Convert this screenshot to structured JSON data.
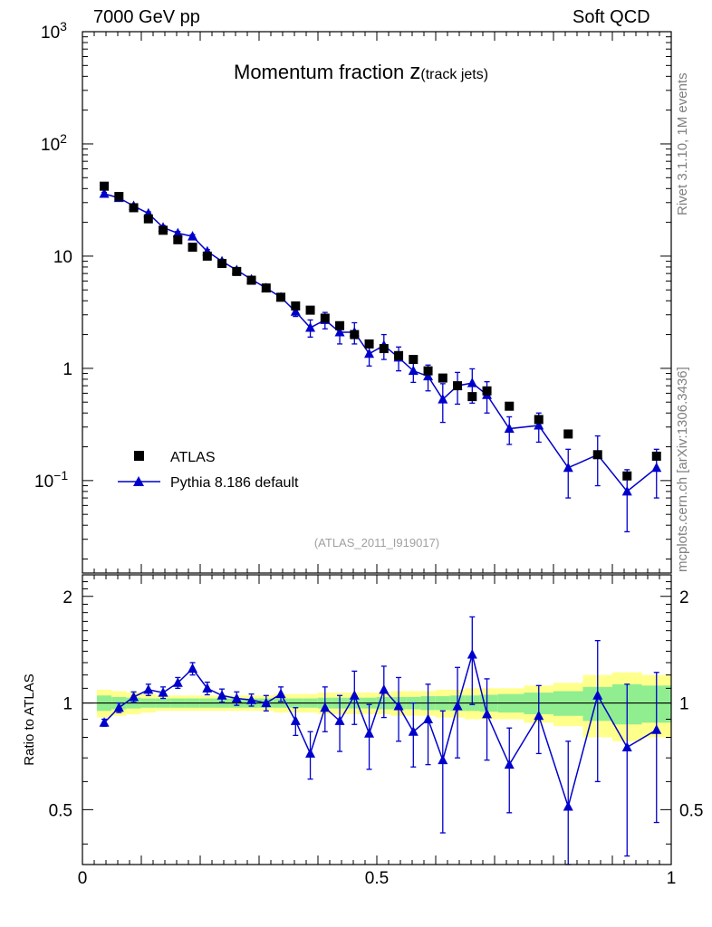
{
  "header": {
    "left": "7000 GeV pp",
    "right": "Soft QCD"
  },
  "side_labels": {
    "rivet": "Rivet 3.1.10,  1M events",
    "mcplots": "mcplots.cern.ch [arXiv:1306.3436]"
  },
  "chart_data": {
    "type": "scatter",
    "title_main": "Momentum fraction ",
    "title_z": "z",
    "title_sub": "(track jets)",
    "analysis_tag": "(ATLAS_2011_I919017)",
    "x_ticklabels": [
      "0",
      "0.5",
      "1"
    ],
    "top_yticklabels": [
      {
        "base": "10",
        "exp": "3",
        "v": 1000
      },
      {
        "base": "10",
        "exp": "2",
        "v": 100
      },
      {
        "base": "10",
        "exp": "",
        "v": 10
      },
      {
        "base": "1",
        "exp": "",
        "v": 1
      },
      {
        "base": "10",
        "exp": "−1",
        "v": 0.1
      }
    ],
    "ratio_yticklabels": [
      "2",
      "1",
      "0.5"
    ],
    "ratio_ylabel": "Ratio to ATLAS",
    "xlim": [
      0,
      1
    ],
    "ylim_top": [
      0.015,
      1000
    ],
    "ylim_ratio": [
      0.35,
      2.3
    ],
    "legend": {
      "data": "ATLAS",
      "mc": "Pythia 8.186 default",
      "placement": "bottom-left"
    },
    "colors": {
      "data": "#000000",
      "mc": "#0000cc",
      "band_inner": "#90ee90",
      "band_outer": "#ffff8c"
    },
    "x": [
      0.037,
      0.062,
      0.087,
      0.112,
      0.137,
      0.162,
      0.187,
      0.212,
      0.237,
      0.262,
      0.287,
      0.312,
      0.337,
      0.362,
      0.387,
      0.412,
      0.437,
      0.462,
      0.487,
      0.512,
      0.537,
      0.562,
      0.587,
      0.612,
      0.637,
      0.662,
      0.687,
      0.725,
      0.775,
      0.825,
      0.875,
      0.925,
      0.975
    ],
    "data_y": [
      42,
      34,
      27,
      21.5,
      17,
      14,
      12,
      10,
      8.6,
      7.3,
      6.1,
      5.2,
      4.3,
      3.6,
      3.3,
      2.8,
      2.4,
      2.0,
      1.65,
      1.5,
      1.3,
      1.2,
      0.95,
      0.82,
      0.7,
      0.56,
      0.63,
      0.46,
      0.35,
      0.26,
      0.17,
      0.11,
      0.165
    ],
    "mc_y": [
      36,
      33,
      28,
      24,
      18,
      16,
      15,
      11,
      9,
      7.5,
      6.2,
      5.2,
      4.3,
      3.2,
      2.3,
      2.7,
      2.1,
      2.1,
      1.35,
      1.6,
      1.25,
      0.95,
      0.85,
      0.53,
      0.7,
      0.74,
      0.58,
      0.29,
      0.31,
      0.13,
      0.17,
      0.08,
      0.13
    ],
    "mc_yerr": [
      1,
      1,
      0.9,
      0.8,
      0.7,
      0.6,
      0.55,
      0.45,
      0.35,
      0.3,
      0.25,
      0.22,
      0.22,
      0.3,
      0.4,
      0.45,
      0.45,
      0.45,
      0.3,
      0.4,
      0.3,
      0.2,
      0.22,
      0.2,
      0.22,
      0.25,
      0.18,
      0.08,
      0.09,
      0.06,
      0.08,
      0.045,
      0.06
    ],
    "ratio_y": [
      0.88,
      0.97,
      1.04,
      1.09,
      1.07,
      1.14,
      1.25,
      1.1,
      1.05,
      1.03,
      1.02,
      1.0,
      1.06,
      0.89,
      0.72,
      0.97,
      0.89,
      1.05,
      0.82,
      1.09,
      0.98,
      0.83,
      0.9,
      0.69,
      0.98,
      1.37,
      0.93,
      0.67,
      0.92,
      0.51,
      1.05,
      0.75,
      0.84
    ],
    "ratio_yerr": [
      0.02,
      0.03,
      0.035,
      0.04,
      0.04,
      0.04,
      0.05,
      0.045,
      0.045,
      0.045,
      0.04,
      0.05,
      0.05,
      0.08,
      0.11,
      0.14,
      0.16,
      0.18,
      0.17,
      0.18,
      0.2,
      0.17,
      0.23,
      0.26,
      0.28,
      0.38,
      0.24,
      0.18,
      0.2,
      0.27,
      0.45,
      0.38,
      0.38
    ],
    "band_inner": [
      0.05,
      0.04,
      0.035,
      0.03,
      0.03,
      0.03,
      0.03,
      0.03,
      0.03,
      0.03,
      0.03,
      0.03,
      0.03,
      0.03,
      0.03,
      0.035,
      0.035,
      0.035,
      0.035,
      0.04,
      0.04,
      0.04,
      0.045,
      0.045,
      0.05,
      0.05,
      0.055,
      0.06,
      0.07,
      0.08,
      0.11,
      0.13,
      0.12
    ],
    "band_outer": [
      0.09,
      0.08,
      0.07,
      0.06,
      0.05,
      0.05,
      0.05,
      0.05,
      0.05,
      0.05,
      0.05,
      0.05,
      0.06,
      0.06,
      0.06,
      0.07,
      0.07,
      0.07,
      0.07,
      0.07,
      0.08,
      0.08,
      0.08,
      0.09,
      0.09,
      0.1,
      0.1,
      0.1,
      0.12,
      0.14,
      0.2,
      0.22,
      0.2
    ]
  }
}
